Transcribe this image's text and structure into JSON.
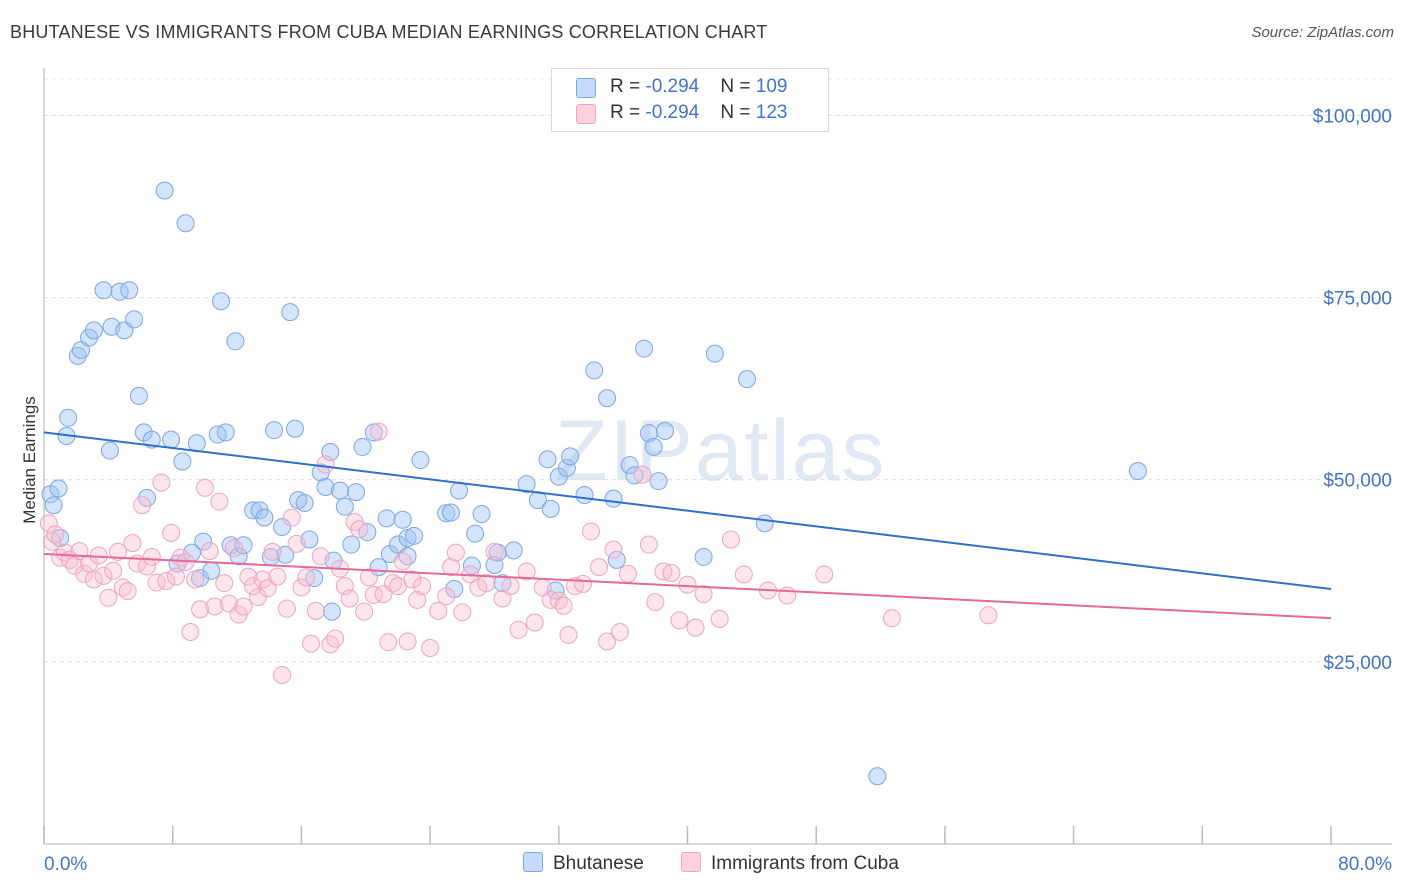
{
  "title": "BHUTANESE VS IMMIGRANTS FROM CUBA MEDIAN EARNINGS CORRELATION CHART",
  "source": "Source: ZipAtlas.com",
  "watermark": {
    "zip": "ZIP",
    "atlas": "atlas"
  },
  "legend": {
    "rows": [
      {
        "r_label": "R = ",
        "r_value": "-0.294",
        "n_label": "N = ",
        "n_value": "109"
      },
      {
        "r_label": "R = ",
        "r_value": "-0.294",
        "n_label": "N = ",
        "n_value": "123"
      }
    ]
  },
  "bottom_legend": {
    "series1": "Bhutanese",
    "series2": "Immigrants from Cuba"
  },
  "chart_data": {
    "type": "scatter",
    "title": "BHUTANESE VS IMMIGRANTS FROM CUBA MEDIAN EARNINGS CORRELATION CHART",
    "xlabel": "",
    "ylabel": "Median Earnings",
    "xlim": [
      0,
      80
    ],
    "ylim": [
      0,
      105000
    ],
    "x_tick_labels": [
      "0.0%",
      "80.0%"
    ],
    "y_ticks": [
      25000,
      50000,
      75000,
      100000
    ],
    "y_tick_labels": [
      "$25,000",
      "$50,000",
      "$75,000",
      "$100,000"
    ],
    "grid": true,
    "colors": {
      "series1": "#7aa7e8",
      "series2": "#f2a3bf",
      "line1": "#2f6fd0",
      "line2": "#e46a96",
      "axis_text": "#3f74c9"
    },
    "series": [
      {
        "name": "Bhutanese",
        "r": -0.294,
        "n": 109,
        "trend": [
          [
            0,
            56500
          ],
          [
            80,
            35000
          ]
        ],
        "points": [
          [
            0.4,
            48000
          ],
          [
            0.6,
            46500
          ],
          [
            0.9,
            48800
          ],
          [
            1.0,
            42000
          ],
          [
            1.5,
            58500
          ],
          [
            1.4,
            56000
          ],
          [
            2.1,
            67000
          ],
          [
            2.3,
            67800
          ],
          [
            2.8,
            69500
          ],
          [
            3.1,
            70500
          ],
          [
            3.7,
            76000
          ],
          [
            4.2,
            71000
          ],
          [
            4.7,
            75800
          ],
          [
            5.0,
            70500
          ],
          [
            5.3,
            76000
          ],
          [
            5.6,
            72000
          ],
          [
            4.1,
            54000
          ],
          [
            5.9,
            61500
          ],
          [
            6.2,
            56500
          ],
          [
            6.4,
            47500
          ],
          [
            6.7,
            55500
          ],
          [
            7.5,
            89700
          ],
          [
            7.9,
            55500
          ],
          [
            8.3,
            38500
          ],
          [
            8.6,
            52500
          ],
          [
            8.8,
            85200
          ],
          [
            9.2,
            40000
          ],
          [
            9.5,
            55000
          ],
          [
            9.7,
            36500
          ],
          [
            9.9,
            41500
          ],
          [
            10.4,
            37500
          ],
          [
            10.8,
            56200
          ],
          [
            11.0,
            74500
          ],
          [
            11.3,
            56500
          ],
          [
            11.6,
            41000
          ],
          [
            11.9,
            69000
          ],
          [
            12.1,
            39500
          ],
          [
            12.4,
            41000
          ],
          [
            13.0,
            45800
          ],
          [
            13.4,
            45800
          ],
          [
            13.7,
            44800
          ],
          [
            14.1,
            39400
          ],
          [
            14.3,
            56800
          ],
          [
            14.8,
            43500
          ],
          [
            15.0,
            39700
          ],
          [
            15.3,
            73000
          ],
          [
            15.6,
            57000
          ],
          [
            15.8,
            47200
          ],
          [
            16.2,
            46800
          ],
          [
            16.5,
            41800
          ],
          [
            16.8,
            36500
          ],
          [
            17.2,
            51000
          ],
          [
            17.5,
            49000
          ],
          [
            17.8,
            53800
          ],
          [
            18.0,
            38900
          ],
          [
            18.4,
            48500
          ],
          [
            18.7,
            46300
          ],
          [
            19.1,
            41100
          ],
          [
            19.4,
            48300
          ],
          [
            19.8,
            54500
          ],
          [
            20.1,
            42800
          ],
          [
            20.5,
            56500
          ],
          [
            20.8,
            38000
          ],
          [
            21.3,
            44700
          ],
          [
            21.5,
            39800
          ],
          [
            22.0,
            41100
          ],
          [
            22.3,
            44500
          ],
          [
            22.6,
            42000
          ],
          [
            23.0,
            42300
          ],
          [
            23.4,
            52700
          ],
          [
            25.0,
            45400
          ],
          [
            25.3,
            45500
          ],
          [
            25.8,
            48500
          ],
          [
            25.5,
            35000
          ],
          [
            26.8,
            42600
          ],
          [
            27.2,
            45300
          ],
          [
            28.0,
            38300
          ],
          [
            28.2,
            40000
          ],
          [
            28.5,
            35800
          ],
          [
            29.2,
            40300
          ],
          [
            30.0,
            49400
          ],
          [
            30.7,
            47200
          ],
          [
            31.3,
            52800
          ],
          [
            31.5,
            46000
          ],
          [
            32.0,
            50400
          ],
          [
            32.5,
            51600
          ],
          [
            32.7,
            53200
          ],
          [
            33.6,
            47900
          ],
          [
            34.2,
            65000
          ],
          [
            35.0,
            61200
          ],
          [
            35.4,
            47400
          ],
          [
            35.6,
            39000
          ],
          [
            36.4,
            52000
          ],
          [
            36.7,
            50600
          ],
          [
            37.3,
            68000
          ],
          [
            37.6,
            56400
          ],
          [
            37.9,
            54500
          ],
          [
            38.6,
            56700
          ],
          [
            41.0,
            39400
          ],
          [
            41.7,
            67300
          ],
          [
            43.7,
            63800
          ],
          [
            44.8,
            44000
          ],
          [
            51.8,
            9300
          ],
          [
            68.0,
            51200
          ],
          [
            38.2,
            49800
          ],
          [
            31.8,
            34800
          ],
          [
            22.6,
            39500
          ],
          [
            17.9,
            31900
          ],
          [
            26.6,
            38200
          ]
        ]
      },
      {
        "name": "Immigrants from Cuba",
        "r": -0.294,
        "n": 123,
        "trend": [
          [
            0,
            39800
          ],
          [
            80,
            31000
          ]
        ],
        "points": [
          [
            0.3,
            44000
          ],
          [
            0.5,
            41500
          ],
          [
            0.7,
            42500
          ],
          [
            1.0,
            39300
          ],
          [
            1.3,
            40000
          ],
          [
            1.6,
            39000
          ],
          [
            1.9,
            38200
          ],
          [
            2.2,
            40200
          ],
          [
            2.5,
            37100
          ],
          [
            2.8,
            38500
          ],
          [
            3.1,
            36300
          ],
          [
            3.4,
            39600
          ],
          [
            3.7,
            36800
          ],
          [
            4.0,
            33800
          ],
          [
            4.3,
            37500
          ],
          [
            4.6,
            40100
          ],
          [
            4.9,
            35200
          ],
          [
            5.2,
            34700
          ],
          [
            5.5,
            41300
          ],
          [
            5.8,
            38500
          ],
          [
            6.1,
            46500
          ],
          [
            6.4,
            38100
          ],
          [
            6.7,
            39400
          ],
          [
            7.0,
            35900
          ],
          [
            7.3,
            49600
          ],
          [
            7.6,
            36100
          ],
          [
            7.9,
            42700
          ],
          [
            8.2,
            36700
          ],
          [
            8.5,
            39300
          ],
          [
            8.8,
            38700
          ],
          [
            9.1,
            29100
          ],
          [
            9.4,
            36300
          ],
          [
            9.7,
            32200
          ],
          [
            10.0,
            48900
          ],
          [
            10.3,
            40200
          ],
          [
            10.6,
            32600
          ],
          [
            10.9,
            47000
          ],
          [
            11.2,
            35800
          ],
          [
            11.5,
            33000
          ],
          [
            11.8,
            40600
          ],
          [
            12.1,
            31500
          ],
          [
            12.4,
            32600
          ],
          [
            12.7,
            36700
          ],
          [
            13.0,
            35400
          ],
          [
            13.3,
            33900
          ],
          [
            13.6,
            36300
          ],
          [
            13.9,
            35100
          ],
          [
            14.2,
            40100
          ],
          [
            14.5,
            36700
          ],
          [
            14.8,
            23200
          ],
          [
            15.1,
            32300
          ],
          [
            15.4,
            44800
          ],
          [
            15.7,
            41200
          ],
          [
            16.0,
            35200
          ],
          [
            16.3,
            36600
          ],
          [
            16.6,
            27500
          ],
          [
            16.9,
            32000
          ],
          [
            17.2,
            39500
          ],
          [
            17.5,
            52100
          ],
          [
            17.8,
            27400
          ],
          [
            18.1,
            28200
          ],
          [
            18.4,
            37800
          ],
          [
            18.7,
            35400
          ],
          [
            19.0,
            33700
          ],
          [
            19.3,
            44200
          ],
          [
            19.6,
            43200
          ],
          [
            19.9,
            31900
          ],
          [
            20.2,
            36600
          ],
          [
            20.5,
            34200
          ],
          [
            20.8,
            56600
          ],
          [
            21.1,
            34300
          ],
          [
            21.4,
            27700
          ],
          [
            21.7,
            35800
          ],
          [
            22.0,
            35400
          ],
          [
            22.3,
            38800
          ],
          [
            22.6,
            27800
          ],
          [
            22.9,
            36300
          ],
          [
            23.2,
            33500
          ],
          [
            23.5,
            35400
          ],
          [
            24.0,
            26900
          ],
          [
            24.5,
            32000
          ],
          [
            25.0,
            34000
          ],
          [
            25.3,
            38000
          ],
          [
            25.6,
            40000
          ],
          [
            26.0,
            31800
          ],
          [
            26.5,
            37000
          ],
          [
            27.0,
            35200
          ],
          [
            27.5,
            35800
          ],
          [
            28.0,
            40100
          ],
          [
            28.5,
            33700
          ],
          [
            29.0,
            35400
          ],
          [
            29.5,
            29400
          ],
          [
            30.0,
            37400
          ],
          [
            30.5,
            30400
          ],
          [
            31.0,
            35200
          ],
          [
            31.5,
            33500
          ],
          [
            32.0,
            33400
          ],
          [
            32.3,
            32700
          ],
          [
            32.6,
            28700
          ],
          [
            33.0,
            35400
          ],
          [
            33.5,
            35700
          ],
          [
            34.0,
            42900
          ],
          [
            34.5,
            38000
          ],
          [
            35.0,
            27800
          ],
          [
            35.4,
            40400
          ],
          [
            35.8,
            29100
          ],
          [
            36.3,
            37100
          ],
          [
            37.2,
            50700
          ],
          [
            37.6,
            41100
          ],
          [
            38.0,
            33200
          ],
          [
            38.5,
            37400
          ],
          [
            39.0,
            37200
          ],
          [
            39.5,
            30700
          ],
          [
            40.0,
            35600
          ],
          [
            40.5,
            29700
          ],
          [
            41.0,
            34300
          ],
          [
            42.0,
            30900
          ],
          [
            42.7,
            41800
          ],
          [
            43.5,
            37000
          ],
          [
            45.0,
            34800
          ],
          [
            46.2,
            34100
          ],
          [
            48.5,
            37000
          ],
          [
            52.7,
            31000
          ],
          [
            58.7,
            31400
          ]
        ]
      }
    ]
  }
}
